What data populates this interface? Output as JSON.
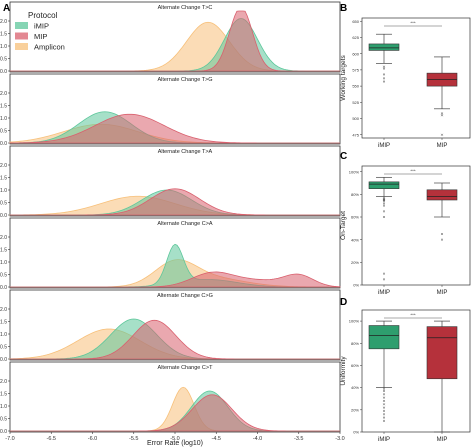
{
  "figure": {
    "panel_a_label": "A",
    "panel_b_label": "B",
    "panel_c_label": "C",
    "panel_d_label": "D"
  },
  "legend": {
    "title": "Protocol",
    "items": [
      {
        "label": "iMIP",
        "color": "#5dc79b"
      },
      {
        "label": "MIP",
        "color": "#d9606e"
      },
      {
        "label": "Amplicon",
        "color": "#f7c07a"
      }
    ]
  },
  "colors": {
    "imip_box": "#2e9e6e",
    "mip_box": "#b5313b",
    "imip_fill": "#5dc79b",
    "mip_fill": "#d9606e",
    "amplicon_fill": "#f7c07a"
  },
  "chart_data": [
    {
      "type": "area",
      "panel": "A",
      "chart_kind": "stacked density plots (kde)",
      "xlabel": "Error Rate (log10)",
      "xlim": [
        -7.0,
        -3.0
      ],
      "x_ticks": [
        "-7.0",
        "-6.5",
        "-6.0",
        "-5.5",
        "-5.0",
        "-4.5",
        "-4.0",
        "-3.5",
        "-3.0"
      ],
      "ylim": [
        0,
        2.4
      ],
      "y_ticks": [
        "0.0",
        "0.5",
        "1.0",
        "1.5",
        "2.0"
      ],
      "subplots": [
        {
          "title": "Alternate Change T>C",
          "series": [
            {
              "name": "Amplicon",
              "components": [
                {
                  "mu": -4.6,
                  "sigma": 0.26,
                  "peak": 1.95
                }
              ]
            },
            {
              "name": "iMIP",
              "components": [
                {
                  "mu": -4.2,
                  "sigma": 0.2,
                  "peak": 2.1
                }
              ]
            },
            {
              "name": "MIP",
              "components": [
                {
                  "mu": -4.2,
                  "sigma": 0.14,
                  "peak": 2.55
                }
              ]
            }
          ]
        },
        {
          "title": "Alternate Change T>G",
          "series": [
            {
              "name": "Amplicon",
              "components": [
                {
                  "mu": -5.9,
                  "sigma": 0.45,
                  "peak": 0.75
                }
              ]
            },
            {
              "name": "iMIP",
              "components": [
                {
                  "mu": -5.85,
                  "sigma": 0.32,
                  "peak": 1.25
                }
              ]
            },
            {
              "name": "MIP",
              "components": [
                {
                  "mu": -5.55,
                  "sigma": 0.42,
                  "peak": 1.15
                }
              ]
            }
          ]
        },
        {
          "title": "Alternate Change T>A",
          "series": [
            {
              "name": "Amplicon",
              "components": [
                {
                  "mu": -5.45,
                  "sigma": 0.45,
                  "peak": 0.75
                }
              ]
            },
            {
              "name": "iMIP",
              "components": [
                {
                  "mu": -5.1,
                  "sigma": 0.3,
                  "peak": 1.0
                }
              ]
            },
            {
              "name": "MIP",
              "components": [
                {
                  "mu": -5.0,
                  "sigma": 0.3,
                  "peak": 1.05
                }
              ]
            }
          ]
        },
        {
          "title": "Alternate Change C>A",
          "series": [
            {
              "name": "Amplicon",
              "components": [
                {
                  "mu": -5.0,
                  "sigma": 0.25,
                  "peak": 0.9
                },
                {
                  "mu": -4.55,
                  "sigma": 0.4,
                  "peak": 0.35
                }
              ]
            },
            {
              "name": "iMIP",
              "components": [
                {
                  "mu": -5.0,
                  "sigma": 0.1,
                  "peak": 1.55
                },
                {
                  "mu": -4.6,
                  "sigma": 0.35,
                  "peak": 0.3
                }
              ]
            },
            {
              "name": "MIP",
              "components": [
                {
                  "mu": -4.55,
                  "sigma": 0.25,
                  "peak": 0.55
                },
                {
                  "mu": -3.5,
                  "sigma": 0.18,
                  "peak": 0.45
                },
                {
                  "mu": -4.0,
                  "sigma": 0.3,
                  "peak": 0.25
                }
              ]
            }
          ]
        },
        {
          "title": "Alternate Change C>G",
          "series": [
            {
              "name": "Amplicon",
              "components": [
                {
                  "mu": -5.8,
                  "sigma": 0.38,
                  "peak": 1.2
                }
              ]
            },
            {
              "name": "iMIP",
              "components": [
                {
                  "mu": -5.5,
                  "sigma": 0.28,
                  "peak": 1.6
                }
              ]
            },
            {
              "name": "MIP",
              "components": [
                {
                  "mu": -5.25,
                  "sigma": 0.26,
                  "peak": 1.55
                }
              ]
            }
          ]
        },
        {
          "title": "Alternate Change C>T",
          "series": [
            {
              "name": "Amplicon",
              "components": [
                {
                  "mu": -4.9,
                  "sigma": 0.13,
                  "peak": 1.75
                }
              ]
            },
            {
              "name": "iMIP",
              "components": [
                {
                  "mu": -4.58,
                  "sigma": 0.22,
                  "peak": 1.6
                }
              ]
            },
            {
              "name": "MIP",
              "components": [
                {
                  "mu": -4.55,
                  "sigma": 0.24,
                  "peak": 1.45
                }
              ]
            }
          ]
        }
      ]
    },
    {
      "type": "box",
      "panel": "B",
      "ylabel": "Working targets",
      "ylim": [
        470,
        655
      ],
      "y_ticks": [
        475,
        500,
        525,
        550,
        575,
        600,
        625,
        650
      ],
      "categories": [
        "iMIP",
        "MIP"
      ],
      "significance": "***",
      "boxes": [
        {
          "name": "iMIP",
          "whisker_low": 585,
          "q1": 605,
          "median": 609,
          "q3": 615,
          "whisker_high": 630,
          "outliers": [
            557,
            562,
            568,
            577,
            580
          ]
        },
        {
          "name": "MIP",
          "whisker_low": 515,
          "q1": 550,
          "median": 560,
          "q3": 570,
          "whisker_high": 595,
          "outliers": [
            475,
            505,
            508
          ]
        }
      ]
    },
    {
      "type": "box",
      "panel": "C",
      "ylabel": "On-Target",
      "ylim": [
        0,
        105
      ],
      "y_ticks": [
        "0%",
        "20%",
        "40%",
        "60%",
        "80%",
        "100%"
      ],
      "categories": [
        "iMIP",
        "MIP"
      ],
      "significance": "***",
      "boxes": [
        {
          "name": "iMIP",
          "whisker_low": 78,
          "q1": 85,
          "median": 89,
          "q3": 91,
          "whisker_high": 95,
          "outliers": [
            5,
            10,
            60,
            65,
            70,
            72,
            74,
            75,
            76,
            77
          ]
        },
        {
          "name": "MIP",
          "whisker_low": 60,
          "q1": 75,
          "median": 78,
          "q3": 84,
          "whisker_high": 90,
          "outliers": [
            40,
            45
          ]
        }
      ]
    },
    {
      "type": "box",
      "panel": "D",
      "ylabel": "Uniformity",
      "ylim": [
        0,
        110
      ],
      "y_ticks": [
        "0%",
        "20%",
        "40%",
        "60%",
        "80%",
        "100%"
      ],
      "categories": [
        "iMIP",
        "MIP"
      ],
      "significance": "***",
      "boxes": [
        {
          "name": "iMIP",
          "whisker_low": 40,
          "q1": 75,
          "median": 87,
          "q3": 96,
          "whisker_high": 100,
          "outliers": [
            10,
            13,
            16,
            19,
            22,
            25,
            28,
            31,
            34,
            37,
            39
          ]
        },
        {
          "name": "MIP",
          "whisker_low": 0,
          "q1": 48,
          "median": 85,
          "q3": 95,
          "whisker_high": 100,
          "outliers": []
        }
      ]
    }
  ]
}
